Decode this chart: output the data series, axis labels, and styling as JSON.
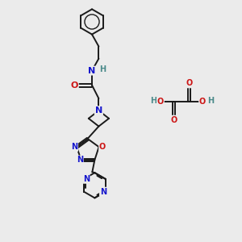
{
  "bg_color": "#ebebeb",
  "bond_color": "#1a1a1a",
  "N_color": "#1515cc",
  "O_color": "#cc1515",
  "H_color": "#4a8a8a",
  "figsize": [
    3.0,
    3.0
  ],
  "dpi": 100,
  "xlim": [
    0,
    10
  ],
  "ylim": [
    0,
    10
  ]
}
